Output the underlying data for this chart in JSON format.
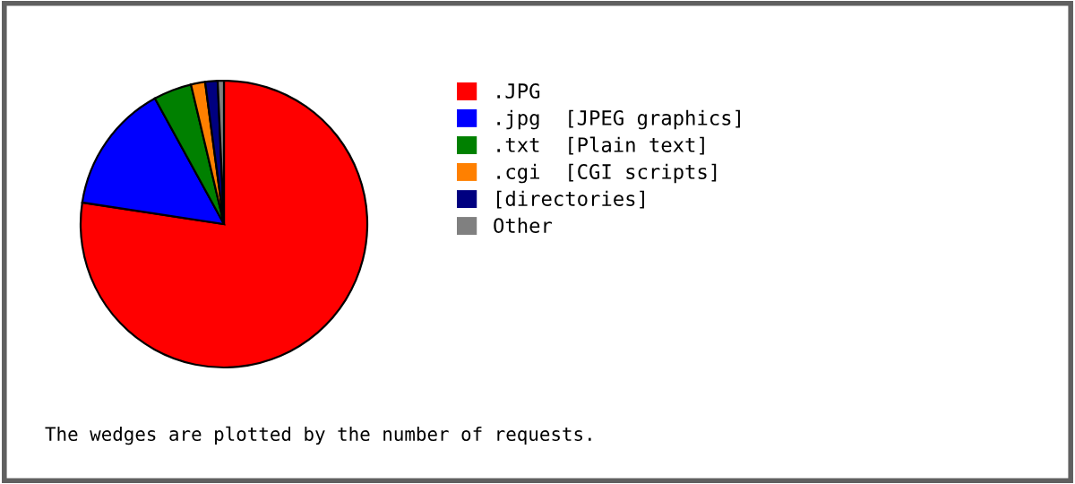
{
  "chart_data": {
    "type": "pie",
    "categories": [
      ".JPG",
      ".jpg  [JPEG graphics]",
      ".txt  [Plain text]",
      ".cgi  [CGI scripts]",
      "[directories]",
      "Other"
    ],
    "values": [
      77.4,
      14.6,
      4.3,
      1.6,
      1.4,
      0.7
    ],
    "colors": [
      "#ff0000",
      "#0000ff",
      "#008000",
      "#ff8000",
      "#000080",
      "#808080"
    ],
    "legend": "right",
    "annotations": [
      "The wedges are plotted by the number of requests."
    ]
  }
}
